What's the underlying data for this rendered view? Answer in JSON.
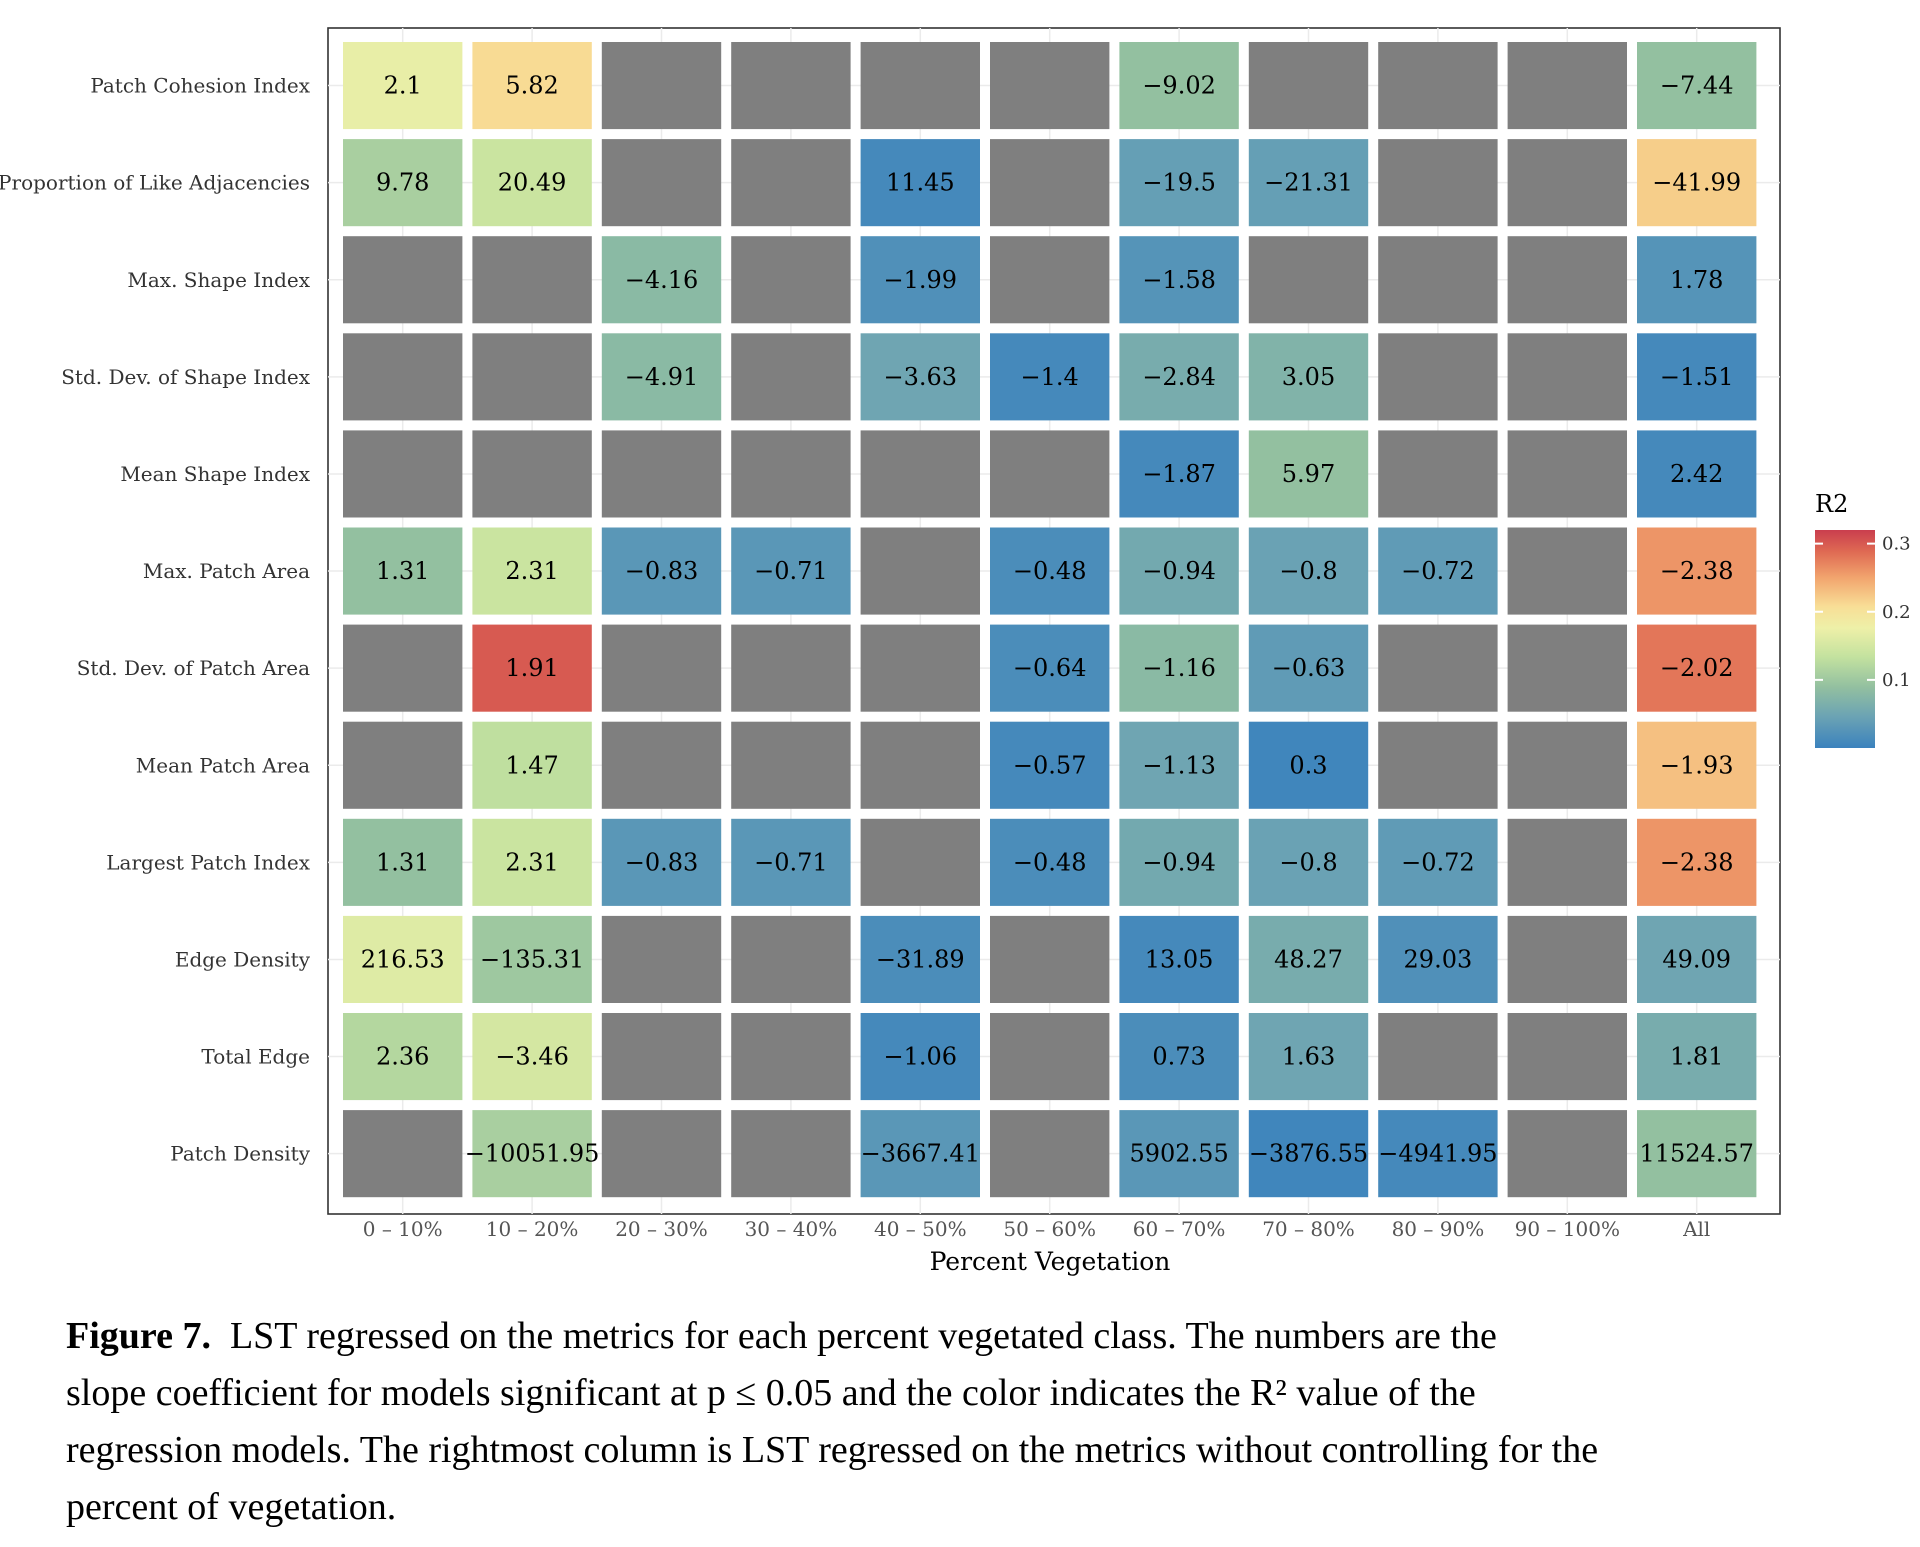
{
  "chart_data": {
    "type": "heatmap",
    "xlabel": "Percent Vegetation",
    "columns": [
      "0 – 10%",
      "10 – 20%",
      "20 – 30%",
      "30 – 40%",
      "40 – 50%",
      "50 – 60%",
      "60 – 70%",
      "70 – 80%",
      "80 – 90%",
      "90 – 100%",
      "All"
    ],
    "rows": [
      "Patch Cohesion Index",
      "Proportion of Like Adjacencies",
      "Max. Shape Index",
      "Std. Dev. of Shape Index",
      "Mean Shape Index",
      "Max. Patch Area",
      "Std. Dev. of Patch Area",
      "Mean Patch Area",
      "Largest Patch Index",
      "Edge Density",
      "Total Edge",
      "Patch Density"
    ],
    "labels": [
      [
        "2.1",
        "5.82",
        "",
        "",
        "",
        "",
        "−9.02",
        "",
        "",
        "",
        "−7.44"
      ],
      [
        "9.78",
        "20.49",
        "",
        "",
        "11.45",
        "",
        "−19.5",
        "−21.31",
        "",
        "",
        "−41.99"
      ],
      [
        "",
        "",
        "−4.16",
        "",
        "−1.99",
        "",
        "−1.58",
        "",
        "",
        "",
        "1.78"
      ],
      [
        "",
        "",
        "−4.91",
        "",
        "−3.63",
        "−1.4",
        "−2.84",
        "3.05",
        "",
        "",
        "−1.51"
      ],
      [
        "",
        "",
        "",
        "",
        "",
        "",
        "−1.87",
        "5.97",
        "",
        "",
        "2.42"
      ],
      [
        "1.31",
        "2.31",
        "−0.83",
        "−0.71",
        "",
        "−0.48",
        "−0.94",
        "−0.8",
        "−0.72",
        "",
        "−2.38"
      ],
      [
        "",
        "1.91",
        "",
        "",
        "",
        "−0.64",
        "−1.16",
        "−0.63",
        "",
        "",
        "−2.02"
      ],
      [
        "",
        "1.47",
        "",
        "",
        "",
        "−0.57",
        "−1.13",
        "0.3",
        "",
        "",
        "−1.93"
      ],
      [
        "1.31",
        "2.31",
        "−0.83",
        "−0.71",
        "",
        "−0.48",
        "−0.94",
        "−0.8",
        "−0.72",
        "",
        "−2.38"
      ],
      [
        "216.53",
        "−135.31",
        "",
        "",
        "−31.89",
        "",
        "13.05",
        "48.27",
        "29.03",
        "",
        "49.09"
      ],
      [
        "2.36",
        "−3.46",
        "",
        "",
        "−1.06",
        "",
        "0.73",
        "1.63",
        "",
        "",
        "1.81"
      ],
      [
        "",
        "−10051.95",
        "",
        "",
        "−3667.41",
        "",
        "5902.55",
        "−3876.55",
        "−4941.95",
        "",
        "11524.57"
      ]
    ],
    "r2": [
      [
        0.17,
        0.21,
        null,
        null,
        null,
        null,
        0.09,
        null,
        null,
        null,
        0.09
      ],
      [
        0.11,
        0.14,
        null,
        null,
        0.01,
        null,
        0.04,
        0.04,
        null,
        null,
        0.22
      ],
      [
        null,
        null,
        0.08,
        null,
        0.02,
        null,
        0.025,
        null,
        null,
        null,
        0.025
      ],
      [
        null,
        null,
        0.08,
        null,
        0.05,
        0.01,
        0.06,
        0.07,
        null,
        null,
        0.01
      ],
      [
        null,
        null,
        null,
        null,
        null,
        null,
        0.01,
        0.09,
        null,
        null,
        0.01
      ],
      [
        0.09,
        0.14,
        0.03,
        0.03,
        null,
        0.015,
        0.055,
        0.045,
        0.035,
        null,
        0.26
      ],
      [
        null,
        0.3,
        null,
        null,
        null,
        0.015,
        0.08,
        0.035,
        null,
        null,
        0.28
      ],
      [
        null,
        0.13,
        null,
        null,
        null,
        0.01,
        0.05,
        0.005,
        null,
        null,
        0.23
      ],
      [
        0.09,
        0.14,
        0.03,
        0.03,
        null,
        0.015,
        0.055,
        0.045,
        0.035,
        null,
        0.26
      ],
      [
        0.16,
        0.1,
        null,
        null,
        0.015,
        null,
        0.01,
        0.06,
        0.02,
        null,
        0.05
      ],
      [
        0.12,
        0.15,
        null,
        null,
        0.01,
        null,
        0.015,
        0.05,
        null,
        null,
        0.06
      ],
      [
        null,
        0.11,
        null,
        null,
        0.03,
        null,
        0.03,
        0.005,
        0.01,
        null,
        0.09
      ]
    ],
    "na_color": "#7f7f7f",
    "legend": {
      "title": "R2",
      "ticks": [
        "0.1",
        "0.2",
        "0.3"
      ],
      "tick_values": [
        0.1,
        0.2,
        0.3
      ],
      "range": [
        0,
        0.32
      ],
      "placement": "right",
      "palette": "Spectral (reversed)"
    },
    "grid": true
  },
  "caption": {
    "label": "Figure 7.",
    "lines": [
      "LST regressed on the metrics for each percent vegetated class. The numbers are the",
      "slope coefficient for models significant at p ≤ 0.05 and the color indicates the R² value of the",
      "regression models. The rightmost column is LST regressed on the metrics without controlling for the",
      "percent of vegetation."
    ]
  }
}
